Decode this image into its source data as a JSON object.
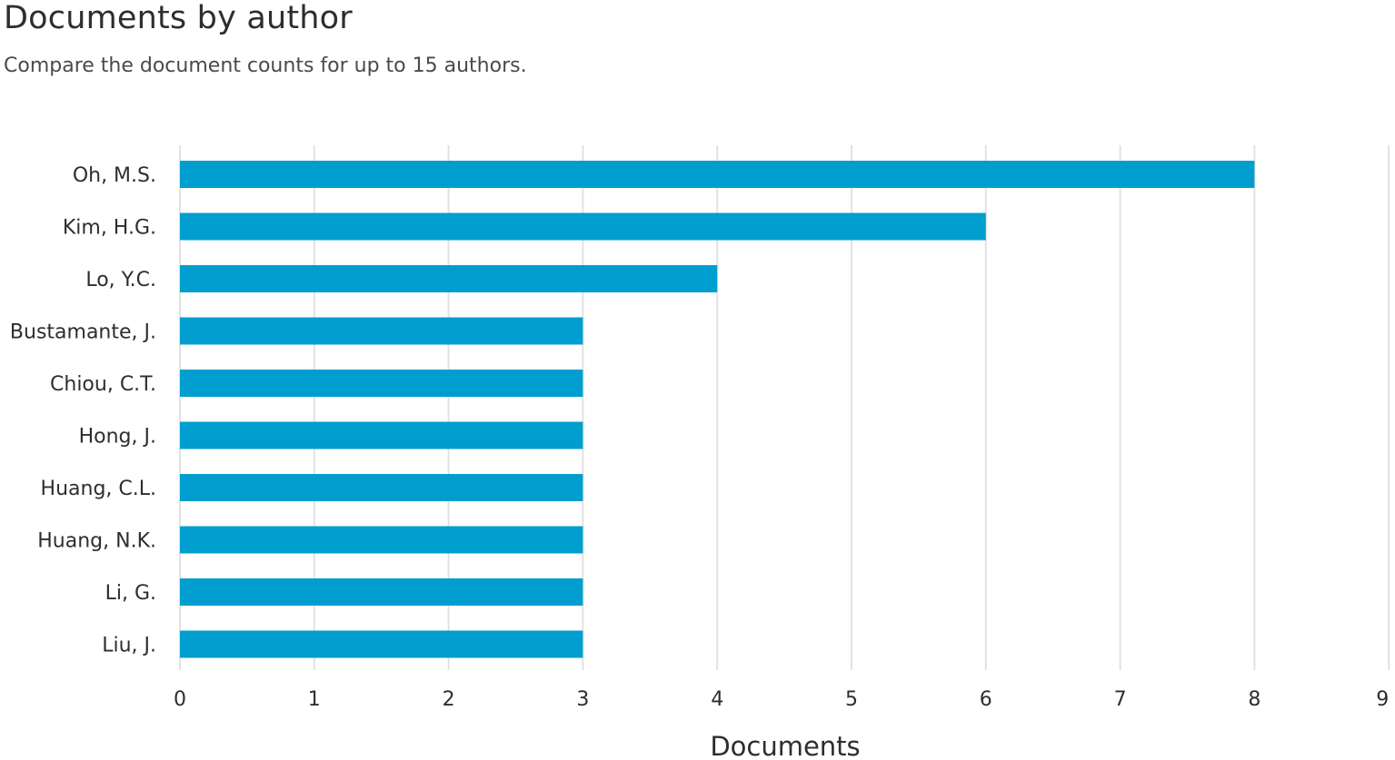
{
  "header": {
    "title": "Documents by author",
    "subtitle": "Compare the document counts for up to 15 authors."
  },
  "colors": {
    "bar": "#009ecf",
    "grid": "#e2e2e2",
    "text": "#2e2e2e"
  },
  "chart_data": {
    "type": "bar",
    "orientation": "horizontal",
    "title": "Documents by author",
    "subtitle": "Compare the document counts for up to 15 authors.",
    "xlabel": "Documents",
    "ylabel": "",
    "categories": [
      "Oh, M.S.",
      "Kim, H.G.",
      "Lo, Y.C.",
      "Bustamante, J.",
      "Chiou, C.T.",
      "Hong, J.",
      "Huang, C.L.",
      "Huang, N.K.",
      "Li, G.",
      "Liu, J."
    ],
    "values": [
      8,
      6,
      4,
      3,
      3,
      3,
      3,
      3,
      3,
      3
    ],
    "xlim": [
      0,
      9
    ],
    "xticks": [
      "0",
      "1",
      "2",
      "3",
      "4",
      "5",
      "6",
      "7",
      "8",
      "9"
    ],
    "grid": "vertical",
    "legend": "none"
  }
}
